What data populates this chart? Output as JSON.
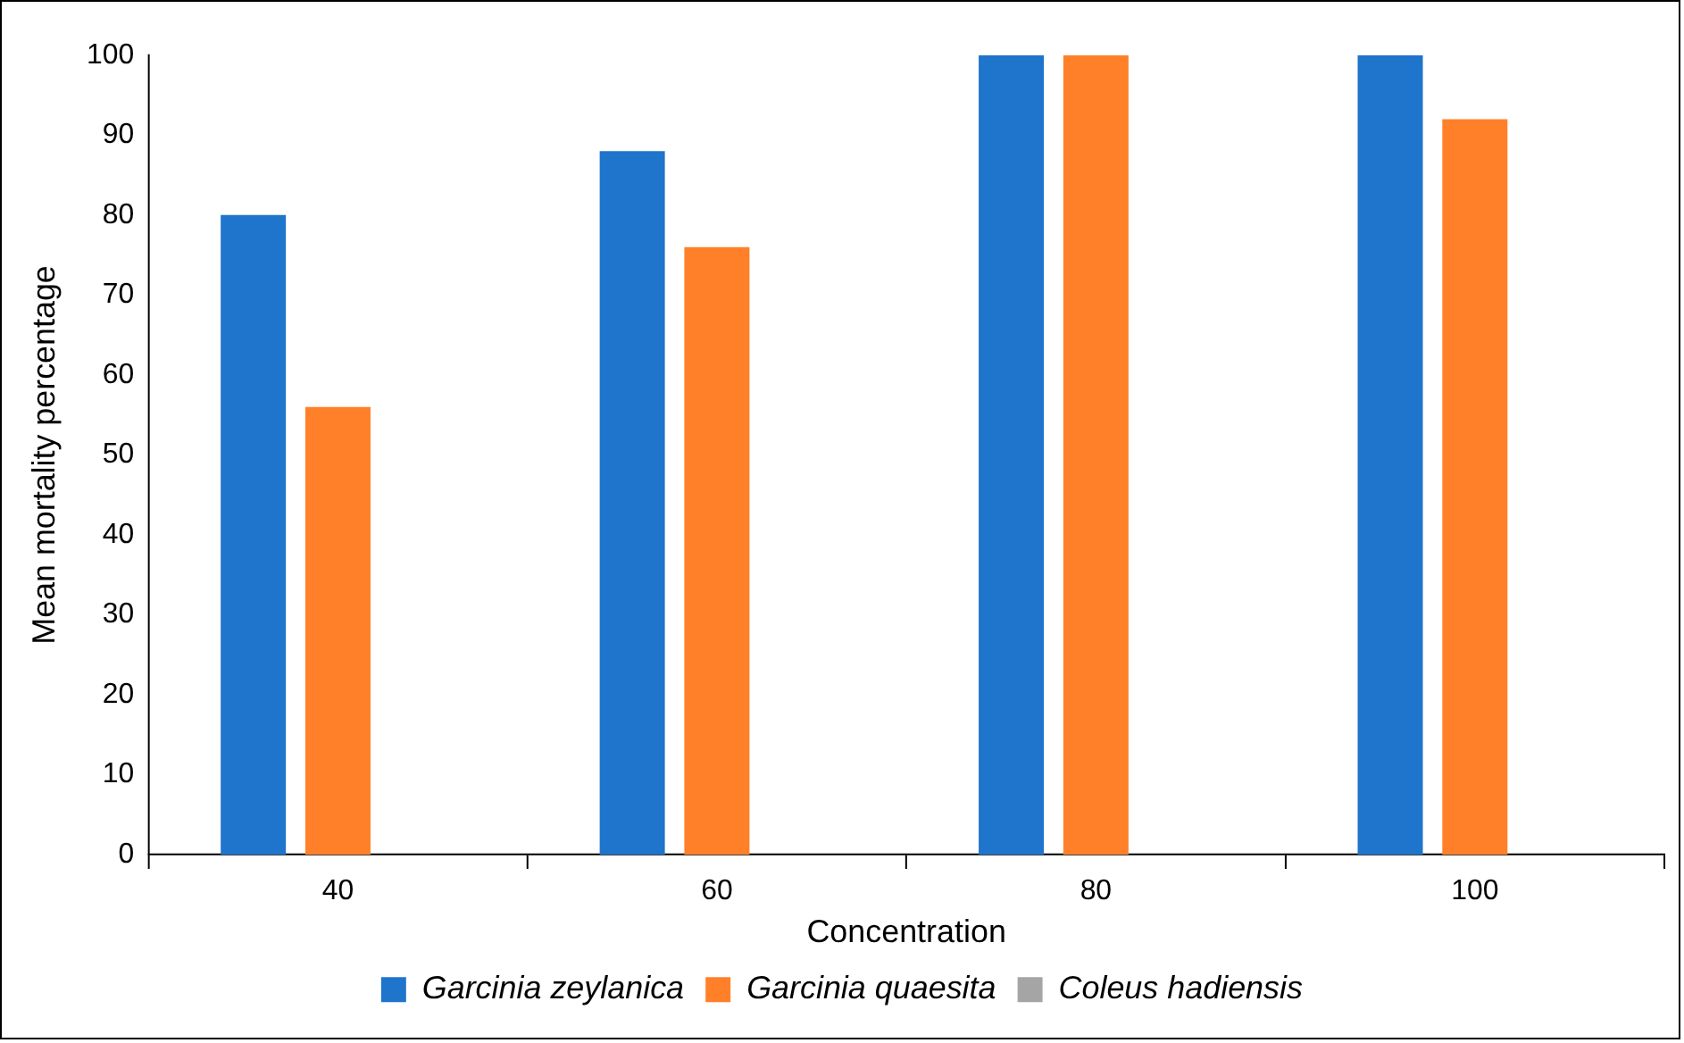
{
  "chart_data": {
    "type": "bar",
    "xlabel": "Concentration",
    "ylabel": "Mean mortality percentage",
    "categories": [
      "40",
      "60",
      "80",
      "100"
    ],
    "series": [
      {
        "name": "Garcinia zeylanica",
        "color": "#1f74cc",
        "values": [
          80,
          88,
          100,
          100
        ]
      },
      {
        "name": "Garcinia quaesita",
        "color": "#ff8029",
        "values": [
          56,
          76,
          100,
          92
        ]
      },
      {
        "name": "Coleus hadiensis",
        "color": "#a5a5a5",
        "values": [
          null,
          null,
          null,
          null
        ]
      }
    ],
    "ylim": [
      0,
      100
    ],
    "yticks": [
      0,
      10,
      20,
      30,
      40,
      50,
      60,
      70,
      80,
      90,
      100
    ],
    "grid": false,
    "legend": "bottom"
  }
}
